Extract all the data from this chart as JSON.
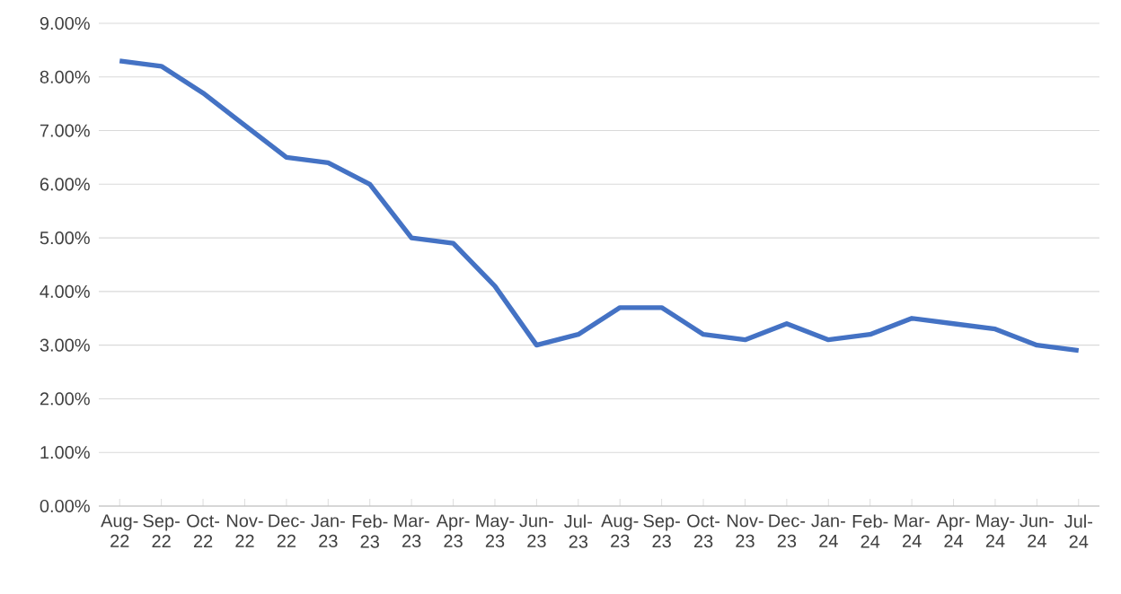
{
  "chart_data": {
    "type": "line",
    "categories": [
      "Aug-22",
      "Sep-22",
      "Oct-22",
      "Nov-22",
      "Dec-22",
      "Jan-23",
      "Feb-23",
      "Mar-23",
      "Apr-23",
      "May-23",
      "Jun-23",
      "Jul-23",
      "Aug-23",
      "Sep-23",
      "Oct-23",
      "Nov-23",
      "Dec-23",
      "Jan-24",
      "Feb-24",
      "Mar-24",
      "Apr-24",
      "May-24",
      "Jun-24",
      "Jul-24"
    ],
    "series": [
      {
        "color": "#4472c4",
        "values": [
          8.3,
          8.2,
          7.7,
          7.1,
          6.5,
          6.4,
          6.0,
          5.0,
          4.9,
          4.1,
          3.0,
          3.2,
          3.7,
          3.7,
          3.2,
          3.1,
          3.4,
          3.1,
          3.2,
          3.5,
          3.4,
          3.3,
          3.0,
          2.9
        ]
      }
    ],
    "ylim": [
      0,
      9
    ],
    "yticks": [
      {
        "value": 0,
        "label": "0.00%"
      },
      {
        "value": 1,
        "label": "1.00%"
      },
      {
        "value": 2,
        "label": "2.00%"
      },
      {
        "value": 3,
        "label": "3.00%"
      },
      {
        "value": 4,
        "label": "4.00%"
      },
      {
        "value": 5,
        "label": "5.00%"
      },
      {
        "value": 6,
        "label": "6.00%"
      },
      {
        "value": 7,
        "label": "7.00%"
      },
      {
        "value": 8,
        "label": "8.00%"
      },
      {
        "value": 9,
        "label": "9.00%"
      }
    ],
    "grid": "y",
    "marker": "none",
    "line_style": "solid"
  }
}
